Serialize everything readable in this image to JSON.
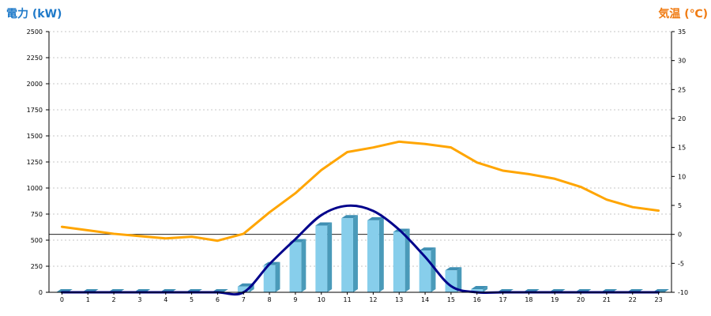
{
  "chart_data": {
    "type": "bar",
    "title": "",
    "xlabel": "",
    "ylabel_left": "電力 (kW)",
    "ylabel_right": "気温 (℃)",
    "x": [
      "0",
      "1",
      "2",
      "3",
      "4",
      "5",
      "6",
      "7",
      "8",
      "9",
      "10",
      "11",
      "12",
      "13",
      "14",
      "15",
      "16",
      "17",
      "18",
      "19",
      "20",
      "21",
      "22",
      "23"
    ],
    "ylim_left": [
      0,
      2500
    ],
    "yticks_left": [
      "0",
      "250",
      "500",
      "750",
      "1000",
      "1250",
      "1500",
      "1750",
      "2000",
      "2250",
      "2500"
    ],
    "ylim_right": [
      -10,
      35
    ],
    "yticks_right": [
      "-10",
      "-5",
      "0",
      "5",
      "10",
      "15",
      "20",
      "25",
      "30",
      "35"
    ],
    "grid": true,
    "series": [
      {
        "kind": "bar",
        "axis": "left",
        "color": "#87ceeb",
        "values": [
          0,
          0,
          0,
          0,
          0,
          0,
          0,
          55,
          260,
          480,
          640,
          710,
          690,
          580,
          400,
          210,
          30,
          0,
          0,
          0,
          0,
          0,
          0,
          0
        ]
      },
      {
        "kind": "line",
        "axis": "left",
        "color": "#00008b",
        "values": [
          0,
          0,
          0,
          0,
          0,
          0,
          0,
          0,
          270,
          510,
          740,
          830,
          780,
          600,
          340,
          60,
          0,
          0,
          0,
          0,
          0,
          0,
          0,
          0
        ]
      },
      {
        "kind": "line",
        "axis": "right",
        "color": "#ffa500",
        "values": [
          1.3,
          0.7,
          0.1,
          -0.3,
          -0.7,
          -0.4,
          -1.1,
          0.1,
          3.8,
          7.1,
          11.1,
          14.2,
          15,
          16,
          15.6,
          15,
          12.4,
          11,
          10.4,
          9.6,
          8.2,
          6,
          4.7,
          4.1
        ]
      }
    ]
  }
}
